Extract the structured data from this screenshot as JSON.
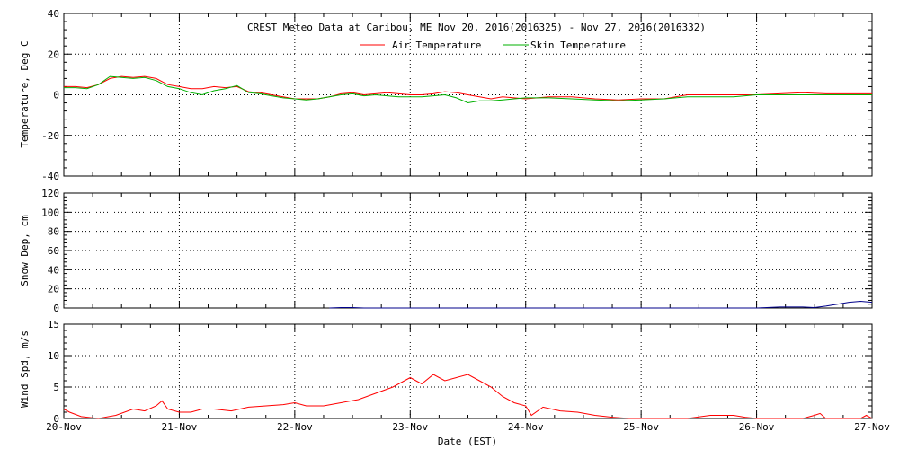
{
  "chart_data": [
    {
      "id": "temperature",
      "type": "line",
      "title": "CREST Meteo Data at Caribou, ME   Nov 20, 2016(2016325) - Nov 27, 2016(2016332)",
      "ylabel": "Temperature, Deg C",
      "ylim": [
        -40,
        40
      ],
      "yticks": [
        -40,
        -20,
        0,
        20,
        40
      ],
      "grid": true,
      "legend_placement": "top-center",
      "series": [
        {
          "name": "Air Temperature",
          "color": "#ff0000",
          "x": [
            0,
            0.1,
            0.2,
            0.3,
            0.4,
            0.5,
            0.6,
            0.7,
            0.8,
            0.9,
            1.0,
            1.1,
            1.2,
            1.3,
            1.4,
            1.5,
            1.6,
            1.7,
            1.8,
            1.9,
            2.0,
            2.1,
            2.2,
            2.3,
            2.4,
            2.5,
            2.6,
            2.7,
            2.8,
            2.9,
            3.0,
            3.1,
            3.2,
            3.3,
            3.4,
            3.5,
            3.6,
            3.7,
            3.8,
            3.9,
            4.0,
            4.2,
            4.4,
            4.6,
            4.8,
            5.0,
            5.2,
            5.4,
            5.6,
            5.8,
            6.0,
            6.2,
            6.4,
            6.6,
            6.8,
            7.0
          ],
          "values": [
            4,
            4,
            3.5,
            5,
            8,
            9,
            8.5,
            9,
            8,
            5,
            4,
            3,
            3,
            4,
            3.5,
            4,
            1.5,
            1,
            0,
            -1,
            -2,
            -2,
            -2,
            -1,
            0.5,
            1,
            0,
            0.5,
            1,
            0.5,
            0,
            0,
            0.5,
            1.5,
            1,
            0,
            -1,
            -2,
            -1,
            -1.5,
            -2,
            -1,
            -1,
            -2,
            -2.5,
            -2,
            -2,
            0,
            0,
            0,
            0,
            0.5,
            1,
            0.5,
            0.5,
            0.5
          ]
        },
        {
          "name": "Skin Temperature",
          "color": "#00b000",
          "x": [
            0,
            0.1,
            0.2,
            0.3,
            0.4,
            0.5,
            0.6,
            0.7,
            0.8,
            0.9,
            1.0,
            1.1,
            1.2,
            1.3,
            1.4,
            1.5,
            1.6,
            1.7,
            1.8,
            1.9,
            2.0,
            2.1,
            2.2,
            2.3,
            2.4,
            2.5,
            2.6,
            2.7,
            2.8,
            2.9,
            3.0,
            3.1,
            3.2,
            3.3,
            3.4,
            3.5,
            3.6,
            3.7,
            3.8,
            3.9,
            4.0,
            4.2,
            4.4,
            4.6,
            4.8,
            5.0,
            5.2,
            5.4,
            5.6,
            5.8,
            6.0,
            6.2,
            6.4,
            6.6,
            6.8,
            7.0
          ],
          "values": [
            3.5,
            3.5,
            3,
            5,
            9,
            8.5,
            8,
            8.5,
            7,
            4,
            3,
            1,
            0,
            2,
            3,
            4.5,
            1,
            0.5,
            -0.5,
            -1.5,
            -2,
            -2.5,
            -2,
            -1,
            0,
            0.5,
            -0.5,
            0,
            -0.5,
            -1,
            -1,
            -1,
            -0.5,
            0,
            -1.5,
            -4,
            -3,
            -3,
            -2.5,
            -2,
            -1.5,
            -1.5,
            -2,
            -2.5,
            -3,
            -2.5,
            -2,
            -1,
            -1,
            -1,
            0,
            0,
            0,
            0,
            0,
            0
          ]
        }
      ]
    },
    {
      "id": "snow",
      "type": "line",
      "ylabel": "Snow Dep, cm",
      "ylim": [
        0,
        120
      ],
      "yticks": [
        0,
        20,
        40,
        60,
        80,
        100,
        120
      ],
      "grid": true,
      "series": [
        {
          "color": "#00008b",
          "x": [
            2.3,
            2.4,
            2.5,
            2.6,
            5.9,
            6.0,
            6.2,
            6.4,
            6.5,
            6.6,
            6.7,
            6.8,
            6.9,
            7.0
          ],
          "values": [
            0,
            0.5,
            0.5,
            0,
            0,
            0,
            1,
            1,
            0.5,
            2,
            4,
            6,
            7,
            6
          ]
        }
      ]
    },
    {
      "id": "wind",
      "type": "line",
      "ylabel": "Wind Spd, m/s",
      "xlabel": "Date (EST)",
      "ylim": [
        0,
        15
      ],
      "yticks": [
        0,
        5,
        10,
        15
      ],
      "grid": true,
      "categories": [
        "20-Nov",
        "21-Nov",
        "22-Nov",
        "23-Nov",
        "24-Nov",
        "25-Nov",
        "26-Nov",
        "27-Nov"
      ],
      "series": [
        {
          "color": "#ff0000",
          "x": [
            0,
            0.05,
            0.15,
            0.3,
            0.45,
            0.6,
            0.7,
            0.8,
            0.85,
            0.9,
            1.0,
            1.1,
            1.2,
            1.3,
            1.45,
            1.6,
            1.75,
            1.9,
            2.0,
            2.1,
            2.25,
            2.4,
            2.55,
            2.7,
            2.85,
            3.0,
            3.1,
            3.2,
            3.3,
            3.4,
            3.5,
            3.6,
            3.7,
            3.8,
            3.9,
            4.0,
            4.05,
            4.15,
            4.3,
            4.45,
            4.6,
            4.75,
            4.9,
            5.0,
            5.2,
            5.4,
            5.6,
            5.8,
            5.9,
            6.0,
            6.2,
            6.4,
            6.5,
            6.55,
            6.6,
            6.7,
            6.8,
            6.9,
            6.95,
            7.0
          ],
          "values": [
            1.5,
            1,
            0.3,
            0,
            0.5,
            1.5,
            1.2,
            2,
            2.8,
            1.5,
            1,
            1,
            1.5,
            1.5,
            1.2,
            1.8,
            2,
            2.2,
            2.5,
            2,
            2,
            2.5,
            3,
            4,
            5,
            6.5,
            5.5,
            7,
            6,
            6.5,
            7,
            6,
            5,
            3.5,
            2.5,
            2,
            0.5,
            1.8,
            1.2,
            1,
            0.5,
            0.2,
            0,
            0,
            0,
            0,
            0.5,
            0.5,
            0.2,
            0,
            0,
            0,
            0.5,
            0.8,
            0,
            0,
            0,
            0,
            0.5,
            0
          ]
        }
      ]
    }
  ]
}
